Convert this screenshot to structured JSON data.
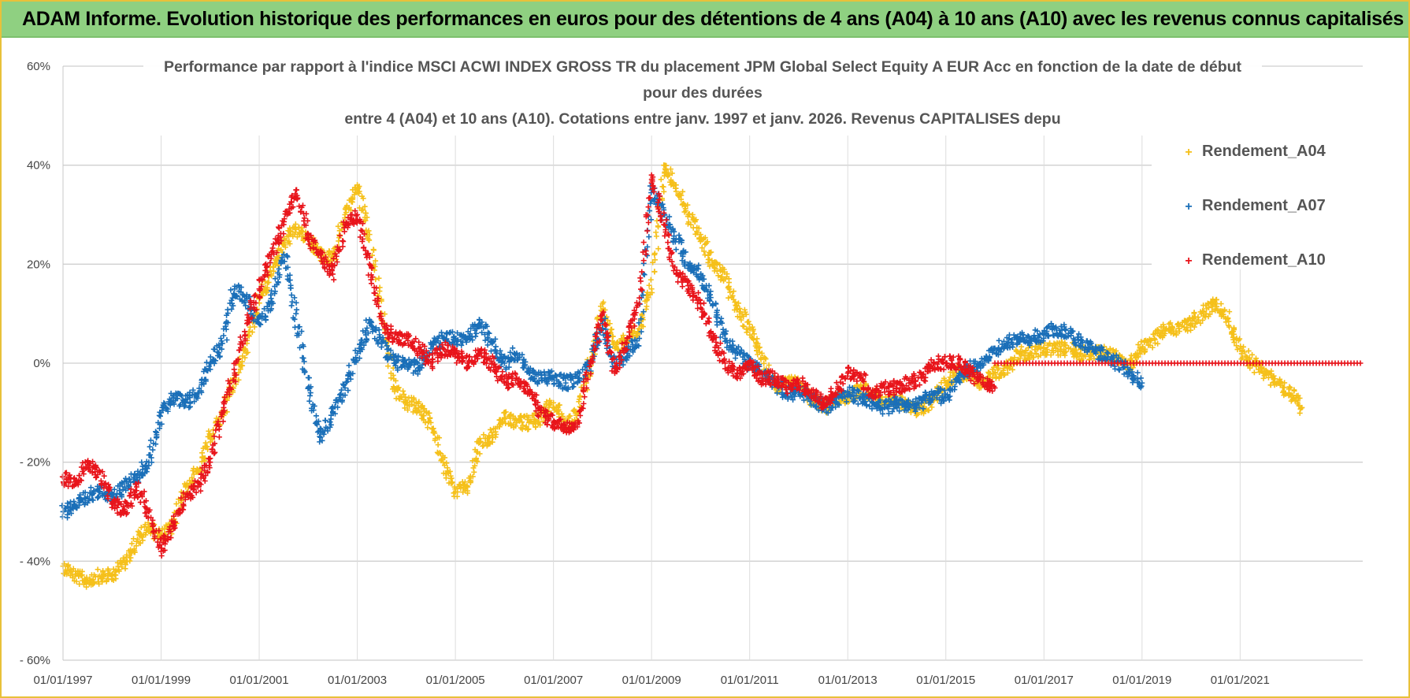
{
  "banner": {
    "text": "ADAM Informe. Evolution historique des performances en euros pour des détentions de 4 ans (A04) à 10 ans (A10) avec les revenus connus capitalisés",
    "color": "#8fd081"
  },
  "chart_data": {
    "type": "scatter",
    "title_lines": [
      "Performance par rapport à l'indice MSCI ACWI INDEX GROSS TR  du placement JPM Global Select  Equity A EUR Acc en fonction de la date de début",
      "pour des durées",
      "entre 4 (A04) et 10 ans (A10).  Cotations entre janv. 1997 et janv. 2026. Revenus CAPITALISES depu"
    ],
    "xlabel": "",
    "ylabel": "",
    "xlim": [
      1997.0,
      2023.5
    ],
    "ylim": [
      -60,
      60
    ],
    "x_ticks": [
      {
        "value": 1997,
        "label": "01/01/1997"
      },
      {
        "value": 1999,
        "label": "01/01/1999"
      },
      {
        "value": 2001,
        "label": "01/01/2001"
      },
      {
        "value": 2003,
        "label": "01/01/2003"
      },
      {
        "value": 2005,
        "label": "01/01/2005"
      },
      {
        "value": 2007,
        "label": "01/01/2007"
      },
      {
        "value": 2009,
        "label": "01/01/2009"
      },
      {
        "value": 2011,
        "label": "01/01/2011"
      },
      {
        "value": 2013,
        "label": "01/01/2013"
      },
      {
        "value": 2015,
        "label": "01/01/2015"
      },
      {
        "value": 2017,
        "label": "01/01/2017"
      },
      {
        "value": 2019,
        "label": "01/01/2019"
      },
      {
        "value": 2021,
        "label": "01/01/2021"
      }
    ],
    "y_ticks": [
      {
        "value": 60,
        "label": "60%"
      },
      {
        "value": 40,
        "label": "40%"
      },
      {
        "value": 20,
        "label": "20%"
      },
      {
        "value": 0,
        "label": "0%"
      },
      {
        "value": -20,
        "label": "- 20%"
      },
      {
        "value": -40,
        "label": "- 40%"
      },
      {
        "value": -60,
        "label": "- 60%"
      }
    ],
    "grid": true,
    "legend_position": "top-right",
    "series": [
      {
        "name": "Rendement_A04",
        "color": "#f5c01a",
        "x": [
          1997.0,
          1997.25,
          1997.5,
          1997.75,
          1998.0,
          1998.25,
          1998.5,
          1998.75,
          1999.0,
          1999.25,
          1999.5,
          1999.75,
          2000.0,
          2000.25,
          2000.5,
          2000.75,
          2001.0,
          2001.25,
          2001.5,
          2001.75,
          2002.0,
          2002.25,
          2002.5,
          2002.75,
          2003.0,
          2003.25,
          2003.5,
          2003.75,
          2004.0,
          2004.25,
          2004.5,
          2004.75,
          2005.0,
          2005.25,
          2005.5,
          2005.75,
          2006.0,
          2006.25,
          2006.5,
          2006.75,
          2007.0,
          2007.25,
          2007.5,
          2007.75,
          2008.0,
          2008.25,
          2008.5,
          2008.75,
          2009.0,
          2009.25,
          2009.5,
          2009.75,
          2010.0,
          2010.25,
          2010.5,
          2010.75,
          2011.0,
          2011.25,
          2011.5,
          2011.75,
          2012.0,
          2012.25,
          2012.5,
          2012.75,
          2013.0,
          2013.25,
          2013.5,
          2013.75,
          2014.0,
          2014.25,
          2014.5,
          2014.75,
          2015.0,
          2015.25,
          2015.5,
          2015.75,
          2016.0,
          2016.25,
          2016.5,
          2016.75,
          2017.0,
          2017.25,
          2017.5,
          2017.75,
          2018.0,
          2018.25,
          2018.5,
          2018.75,
          2019.0,
          2019.25,
          2019.5,
          2019.75,
          2020.0,
          2020.25,
          2020.5,
          2020.75,
          2021.0,
          2021.25,
          2021.5,
          2021.75,
          2022.0,
          2022.25
        ],
        "y": [
          -41,
          -43,
          -44,
          -43,
          -43,
          -40,
          -36,
          -33,
          -35,
          -33,
          -25,
          -22,
          -15,
          -10,
          -3,
          4,
          13,
          18,
          24,
          27,
          25,
          22,
          21,
          30,
          36,
          26,
          10,
          -5,
          -8,
          -9,
          -12,
          -20,
          -26,
          -25,
          -16,
          -15,
          -11,
          -12,
          -12,
          -11,
          -8,
          -13,
          -10,
          0,
          12,
          3,
          5,
          7,
          15,
          40,
          36,
          30,
          26,
          20,
          17,
          11,
          7,
          2,
          -5,
          -4,
          -4,
          -7,
          -9,
          -7,
          -7,
          -5,
          -6,
          -8,
          -8,
          -8,
          -10,
          -7,
          -4,
          -2,
          -2,
          -4,
          -2,
          -1,
          2,
          2,
          3,
          3,
          3,
          2,
          2,
          2,
          1,
          0,
          3,
          5,
          7,
          7,
          8,
          10,
          12,
          9,
          3,
          0,
          -2,
          -4,
          -6,
          -9
        ]
      },
      {
        "name": "Rendement_A07",
        "color": "#1a6fb8",
        "x": [
          1997.0,
          1997.25,
          1997.5,
          1997.75,
          1998.0,
          1998.25,
          1998.5,
          1998.75,
          1999.0,
          1999.25,
          1999.5,
          1999.75,
          2000.0,
          2000.25,
          2000.5,
          2000.75,
          2001.0,
          2001.25,
          2001.5,
          2001.75,
          2002.0,
          2002.25,
          2002.5,
          2002.75,
          2003.0,
          2003.25,
          2003.5,
          2003.75,
          2004.0,
          2004.25,
          2004.5,
          2004.75,
          2005.0,
          2005.25,
          2005.5,
          2005.75,
          2006.0,
          2006.25,
          2006.5,
          2006.75,
          2007.0,
          2007.25,
          2007.5,
          2007.75,
          2008.0,
          2008.25,
          2008.5,
          2008.75,
          2009.0,
          2009.25,
          2009.5,
          2009.75,
          2010.0,
          2010.25,
          2010.5,
          2010.75,
          2011.0,
          2011.25,
          2011.5,
          2011.75,
          2012.0,
          2012.25,
          2012.5,
          2012.75,
          2013.0,
          2013.25,
          2013.5,
          2013.75,
          2014.0,
          2014.25,
          2014.5,
          2014.75,
          2015.0,
          2015.25,
          2015.5,
          2015.75,
          2016.0,
          2016.25,
          2016.5,
          2016.75,
          2017.0,
          2017.25,
          2017.5,
          2017.75,
          2018.0,
          2018.25,
          2018.5,
          2018.75,
          2019.0
        ],
        "y": [
          -30,
          -29,
          -27,
          -26,
          -27,
          -25,
          -23,
          -20,
          -10,
          -7,
          -8,
          -6,
          0,
          4,
          15,
          13,
          8,
          12,
          22,
          10,
          -5,
          -15,
          -10,
          -5,
          2,
          8,
          4,
          0,
          0,
          -1,
          3,
          5,
          5,
          5,
          8,
          4,
          0,
          2,
          -2,
          -3,
          -3,
          -4,
          -3,
          0,
          8,
          0,
          2,
          5,
          35,
          30,
          25,
          20,
          18,
          12,
          5,
          2,
          0,
          -2,
          -4,
          -6,
          -6,
          -7,
          -9,
          -8,
          -6,
          -7,
          -8,
          -9,
          -8,
          -9,
          -8,
          -6,
          -7,
          -3,
          -1,
          0,
          3,
          4,
          5,
          5,
          6,
          7,
          6,
          4,
          3,
          1,
          0,
          -2,
          -4
        ]
      },
      {
        "name": "Rendement_A10",
        "color": "#e8141b",
        "x": [
          1997.0,
          1997.25,
          1997.5,
          1997.75,
          1998.0,
          1998.25,
          1998.5,
          1998.75,
          1999.0,
          1999.25,
          1999.5,
          1999.75,
          2000.0,
          2000.25,
          2000.5,
          2000.75,
          2001.0,
          2001.25,
          2001.5,
          2001.75,
          2002.0,
          2002.25,
          2002.5,
          2002.75,
          2003.0,
          2003.25,
          2003.5,
          2003.75,
          2004.0,
          2004.25,
          2004.5,
          2004.75,
          2005.0,
          2005.25,
          2005.5,
          2005.75,
          2006.0,
          2006.25,
          2006.5,
          2006.75,
          2007.0,
          2007.25,
          2007.5,
          2007.75,
          2008.0,
          2008.25,
          2008.5,
          2008.75,
          2009.0,
          2009.25,
          2009.5,
          2009.75,
          2010.0,
          2010.25,
          2010.5,
          2010.75,
          2011.0,
          2011.25,
          2011.5,
          2011.75,
          2012.0,
          2012.25,
          2012.5,
          2012.75,
          2013.0,
          2013.25,
          2013.5,
          2013.75,
          2014.0,
          2014.25,
          2014.5,
          2014.75,
          2015.0,
          2015.25,
          2015.5,
          2015.75,
          2016.0
        ],
        "y": [
          -23,
          -24,
          -20,
          -22,
          -28,
          -30,
          -25,
          -30,
          -38,
          -33,
          -27,
          -25,
          -20,
          -10,
          -2,
          8,
          15,
          22,
          28,
          35,
          26,
          22,
          18,
          28,
          30,
          20,
          8,
          5,
          5,
          3,
          0,
          3,
          2,
          0,
          2,
          0,
          -4,
          -3,
          -6,
          -10,
          -12,
          -13,
          -12,
          0,
          10,
          -2,
          5,
          12,
          38,
          28,
          18,
          15,
          12,
          5,
          0,
          -2,
          0,
          -3,
          -3,
          -5,
          -4,
          -6,
          -8,
          -6,
          -2,
          -3,
          -6,
          -5,
          -5,
          -4,
          -3,
          0,
          0,
          0,
          -2,
          -4,
          -5
        ]
      }
    ],
    "flat_segment": {
      "series": "Rendement_A10",
      "from": 2016.0,
      "to": 2023.5,
      "value": 0
    }
  }
}
